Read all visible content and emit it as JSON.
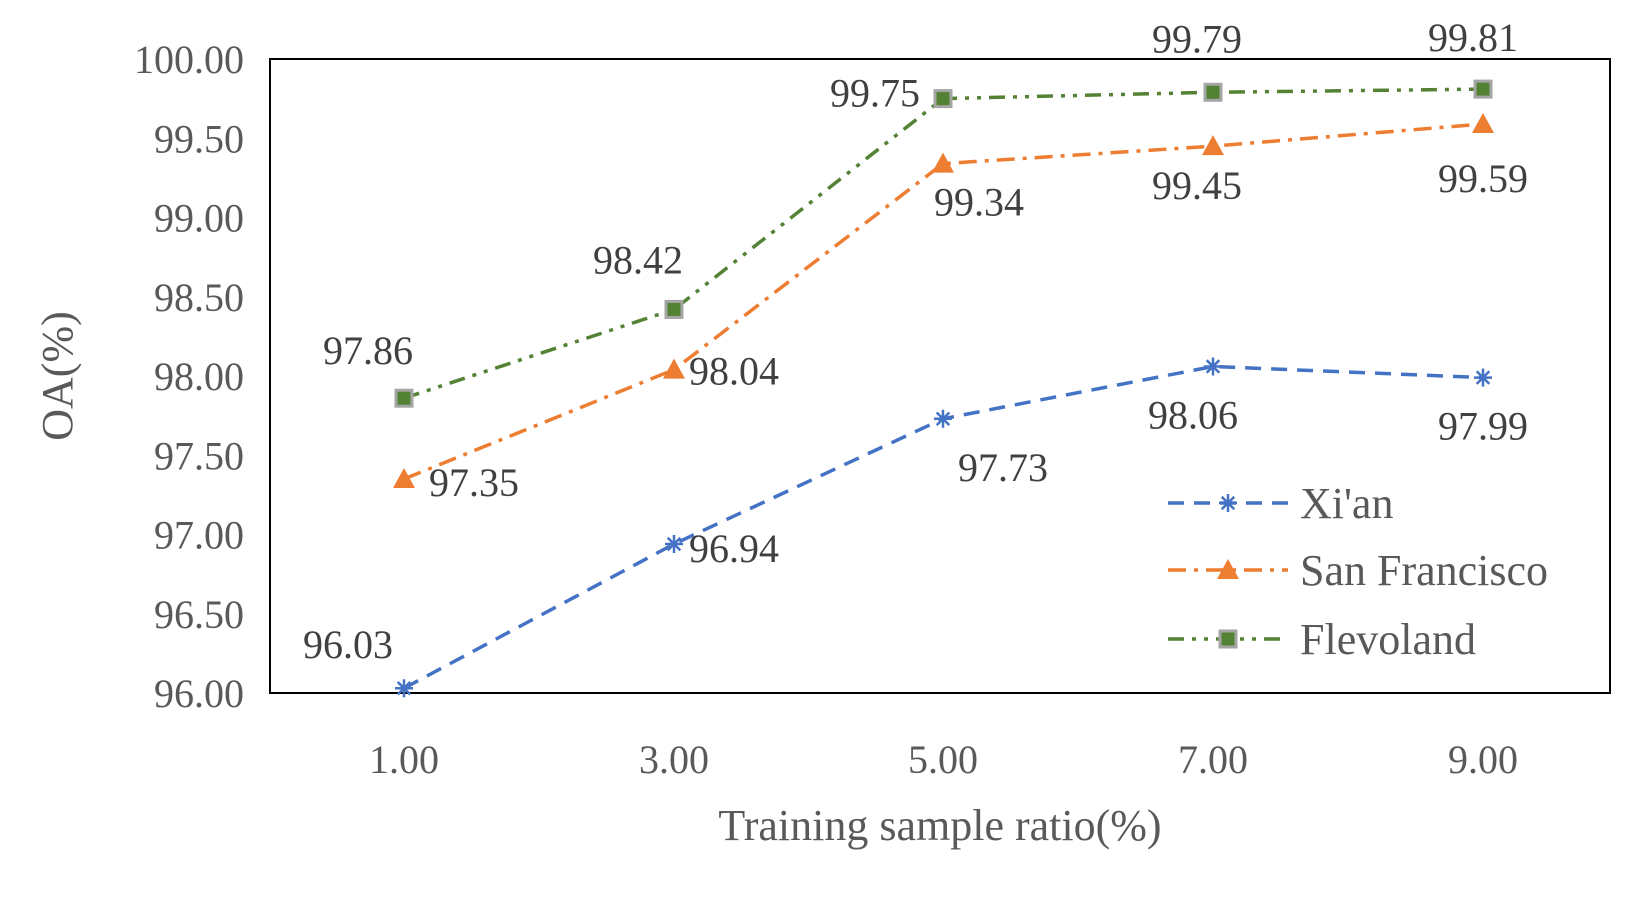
{
  "chart_data": {
    "type": "line",
    "title": "",
    "xlabel": "Training sample ratio(%)",
    "ylabel": "OA(%)",
    "x": [
      1.0,
      3.0,
      5.0,
      7.0,
      9.0
    ],
    "x_tick_labels": [
      "1.00",
      "3.00",
      "5.00",
      "7.00",
      "9.00"
    ],
    "y_tick_labels": [
      "96.00",
      "96.50",
      "97.00",
      "97.50",
      "98.00",
      "98.50",
      "99.00",
      "99.50",
      "100.00"
    ],
    "ylim": [
      96.0,
      100.0
    ],
    "grid": false,
    "legend_position": "bottom-right",
    "series": [
      {
        "name": "Xi'an",
        "values": [
          96.03,
          96.94,
          97.73,
          98.06,
          97.99
        ],
        "labels": [
          "96.03",
          "96.94",
          "97.73",
          "98.06",
          "97.99"
        ],
        "color": "#4472C4",
        "marker": "asterisk",
        "line_style": "dash"
      },
      {
        "name": "San Francisco",
        "values": [
          97.35,
          98.04,
          99.34,
          99.45,
          99.59
        ],
        "labels": [
          "97.35",
          "98.04",
          "99.34",
          "99.45",
          "99.59"
        ],
        "color": "#ED7D31",
        "marker": "triangle",
        "line_style": "dash-dot"
      },
      {
        "name": "Flevoland",
        "values": [
          97.86,
          98.42,
          99.75,
          99.79,
          99.81
        ],
        "labels": [
          "97.86",
          "98.42",
          "99.75",
          "99.79",
          "99.81"
        ],
        "color": "#548235",
        "marker_border_color": "#A5A5A5",
        "marker": "square",
        "line_style": "dash-dot-dot"
      }
    ]
  }
}
